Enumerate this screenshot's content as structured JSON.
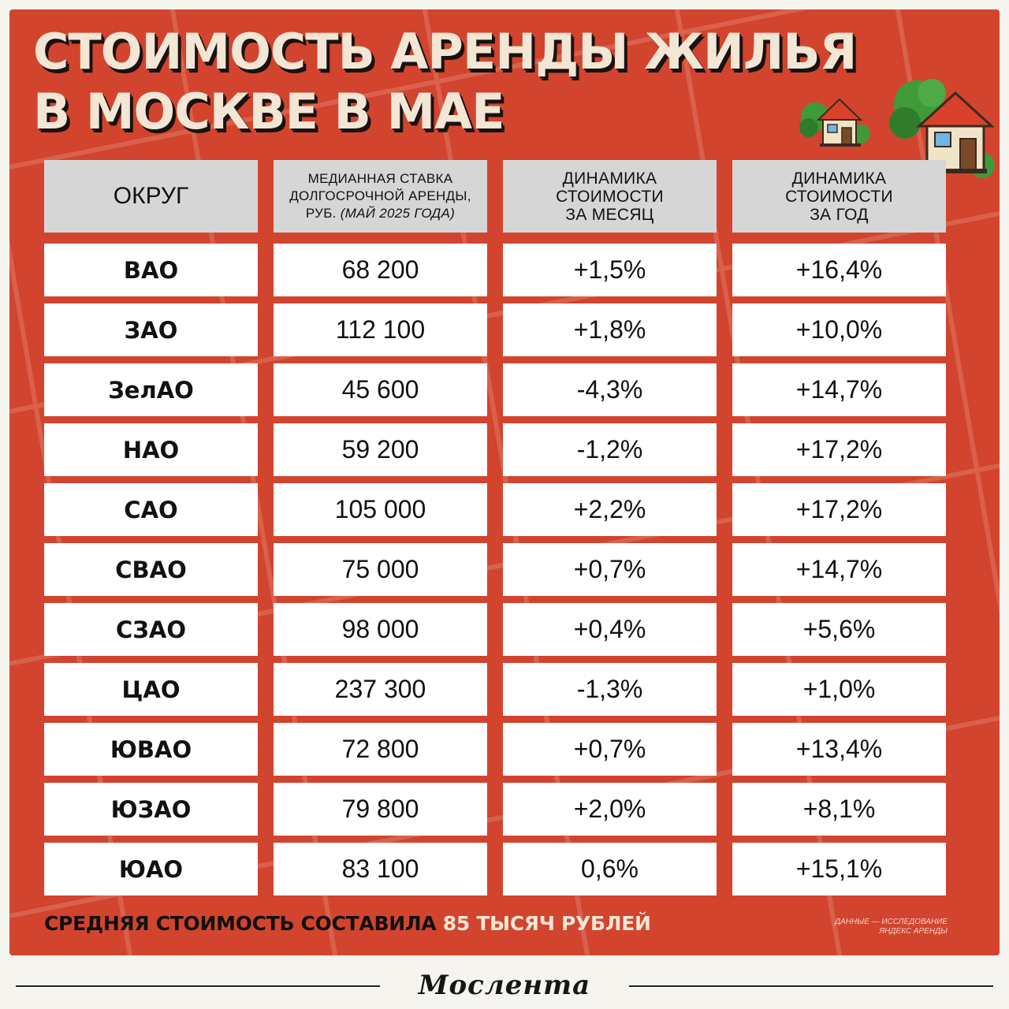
{
  "title": {
    "line1": "СТОИМОСТЬ АРЕНДЫ ЖИЛЬЯ",
    "line2": "В МОСКВЕ В МАЕ"
  },
  "table": {
    "headers": {
      "district": "ОКРУГ",
      "rate_line1": "медианная ставка",
      "rate_line2": "долгосрочной аренды,",
      "rate_line3": "руб.",
      "rate_italic": "(май 2025 года)",
      "month_line1": "ДИНАМИКА",
      "month_line2": "СТОИМОСТИ",
      "month_line3": "ЗА МЕСЯЦ",
      "year_line1": "ДИНАМИКА",
      "year_line2": "СТОИМОСТИ",
      "year_line3": "ЗА ГОД"
    },
    "rows": [
      {
        "district": "ВАО",
        "rate": "68 200",
        "month": "+1,5%",
        "year": "+16,4%"
      },
      {
        "district": "ЗАО",
        "rate": "112 100",
        "month": "+1,8%",
        "year": "+10,0%"
      },
      {
        "district": "ЗелАО",
        "rate": "45 600",
        "month": "-4,3%",
        "year": "+14,7%"
      },
      {
        "district": "НАО",
        "rate": "59 200",
        "month": "-1,2%",
        "year": "+17,2%"
      },
      {
        "district": "САО",
        "rate": "105 000",
        "month": "+2,2%",
        "year": "+17,2%"
      },
      {
        "district": "СВАО",
        "rate": "75 000",
        "month": "+0,7%",
        "year": "+14,7%"
      },
      {
        "district": "СЗАО",
        "rate": "98 000",
        "month": "+0,4%",
        "year": "+5,6%"
      },
      {
        "district": "ЦАО",
        "rate": "237 300",
        "month": "-1,3%",
        "year": "+1,0%"
      },
      {
        "district": "ЮВАО",
        "rate": "72 800",
        "month": "+0,7%",
        "year": "+13,4%"
      },
      {
        "district": "ЮЗАО",
        "rate": "79 800",
        "month": "+2,0%",
        "year": "+8,1%"
      },
      {
        "district": "ЮАО",
        "rate": "83 100",
        "month": "0,6%",
        "year": "+15,1%"
      }
    ]
  },
  "footer": {
    "summary_prefix": "СРЕДНЯЯ СТОИМОСТЬ СОСТАВИЛА",
    "summary_highlight": "85 ТЫСЯЧ РУБЛЕЙ",
    "source_line1": "Данные — исследование",
    "source_line2": "Яндекс Аренды"
  },
  "brand": {
    "logo_text": "Мослента"
  },
  "icons": [
    "house-with-tree-icon",
    "house-with-tree-large-icon"
  ],
  "colors": {
    "background": "#d2442e",
    "header_cell": "#d6d6d6",
    "cell": "#ffffff",
    "title_text": "#f3e6d4",
    "accent_text": "#f3e6d4"
  }
}
